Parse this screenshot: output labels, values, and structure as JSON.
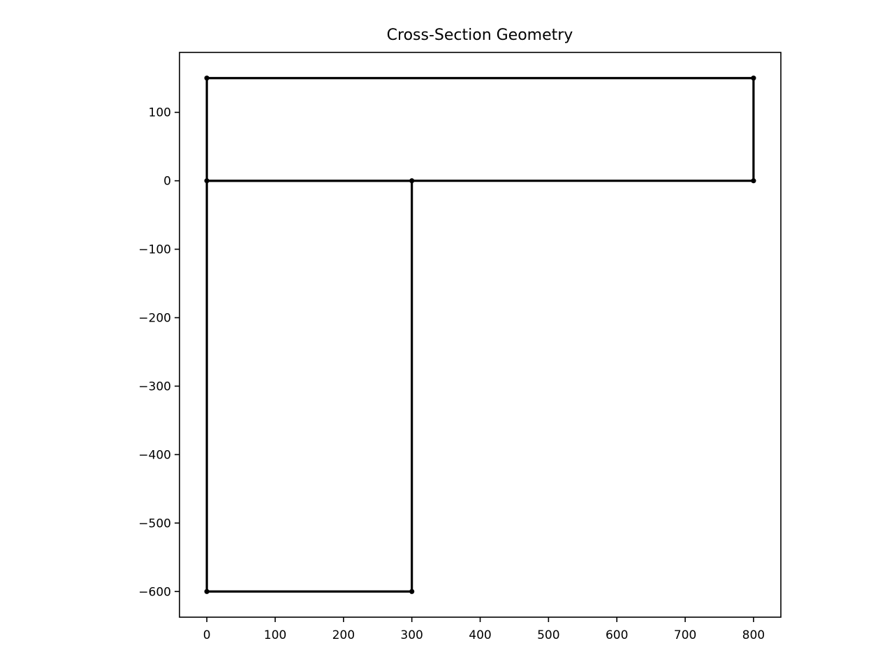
{
  "chart_data": {
    "type": "line",
    "title": "Cross-Section Geometry",
    "xlabel": "",
    "ylabel": "",
    "xlim": [
      -40,
      840
    ],
    "ylim": [
      -637.5,
      187.5
    ],
    "xticks": [
      0,
      100,
      200,
      300,
      400,
      500,
      600,
      700,
      800
    ],
    "yticks": [
      100,
      0,
      -100,
      -200,
      -300,
      -400,
      -500,
      -600
    ],
    "xtick_labels": [
      "0",
      "100",
      "200",
      "300",
      "400",
      "500",
      "600",
      "700",
      "800"
    ],
    "ytick_labels": [
      "100",
      "0",
      "−100",
      "−200",
      "−300",
      "−400",
      "−500",
      "−600"
    ],
    "color": "#000000",
    "grid": false,
    "series": [
      {
        "segments": [
          {
            "x": [
              0,
              800
            ],
            "y": [
              0,
              0
            ]
          },
          {
            "x": [
              800,
              800
            ],
            "y": [
              0,
              150
            ]
          },
          {
            "x": [
              800,
              0
            ],
            "y": [
              150,
              150
            ]
          },
          {
            "x": [
              0,
              0
            ],
            "y": [
              150,
              0
            ]
          },
          {
            "x": [
              0,
              300
            ],
            "y": [
              0,
              0
            ]
          },
          {
            "x": [
              300,
              300
            ],
            "y": [
              0,
              -600
            ]
          },
          {
            "x": [
              300,
              0
            ],
            "y": [
              -600,
              -600
            ]
          },
          {
            "x": [
              0,
              0
            ],
            "y": [
              -600,
              0
            ]
          }
        ],
        "points": [
          {
            "x": 0,
            "y": 150
          },
          {
            "x": 800,
            "y": 150
          },
          {
            "x": 0,
            "y": 0
          },
          {
            "x": 300,
            "y": 0
          },
          {
            "x": 800,
            "y": 0
          },
          {
            "x": 0,
            "y": -600
          },
          {
            "x": 300,
            "y": -600
          }
        ]
      }
    ]
  }
}
